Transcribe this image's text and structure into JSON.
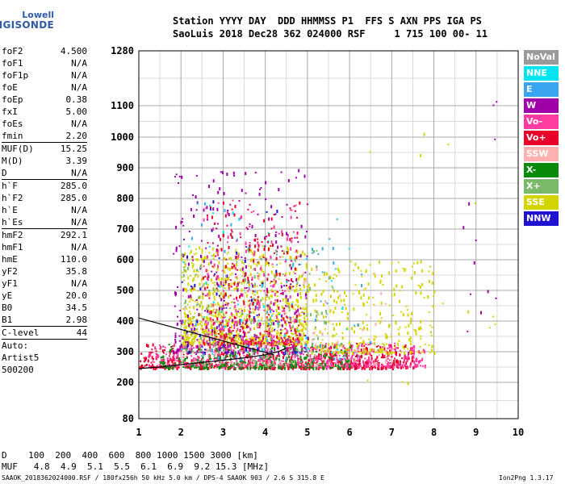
{
  "header": {
    "row1": "Station YYYY DAY  DDD HHMMSS P1  FFS S AXN PPS IGA PS",
    "row2": "SaoLuis 2018 Dec28 362 024000 RSF     1 715 100 00- 11"
  },
  "logo": {
    "line1": "Lowell",
    "line2": "DIGISONDE"
  },
  "params_group1": [
    {
      "name": "foF2",
      "value": "4.500"
    },
    {
      "name": "foF1",
      "value": "N/A"
    },
    {
      "name": "foF1p",
      "value": "N/A"
    },
    {
      "name": "foE",
      "value": "N/A"
    },
    {
      "name": "foEp",
      "value": "0.38"
    },
    {
      "name": "fxI",
      "value": "5.00"
    },
    {
      "name": "foEs",
      "value": "N/A"
    },
    {
      "name": "fmin",
      "value": "2.20"
    }
  ],
  "params_group2": [
    {
      "name": "MUF(D)",
      "value": "15.25"
    },
    {
      "name": "M(D)",
      "value": "3.39"
    },
    {
      "name": "D",
      "value": "N/A"
    }
  ],
  "params_group3": [
    {
      "name": "h`F",
      "value": "285.0"
    },
    {
      "name": "h`F2",
      "value": "285.0"
    },
    {
      "name": "h`E",
      "value": "N/A"
    },
    {
      "name": "h`Es",
      "value": "N/A"
    }
  ],
  "params_group4": [
    {
      "name": "hmF2",
      "value": "292.1"
    },
    {
      "name": "hmF1",
      "value": "N/A"
    },
    {
      "name": "hmE",
      "value": "110.0"
    },
    {
      "name": "yF2",
      "value": "35.8"
    },
    {
      "name": "yF1",
      "value": "N/A"
    },
    {
      "name": "yE",
      "value": "20.0"
    },
    {
      "name": "B0",
      "value": "34.5"
    },
    {
      "name": "B1",
      "value": "2.98"
    }
  ],
  "clevel": {
    "name": "C-level",
    "value": "44"
  },
  "auto": {
    "line1": "Auto:",
    "line2": "Artist5",
    "line3": "500200"
  },
  "legend": [
    {
      "label": "NoVal",
      "color": "#9a9a9a"
    },
    {
      "label": "NNE",
      "color": "#00e5f0"
    },
    {
      "label": "E",
      "color": "#3aa6f2"
    },
    {
      "label": "W",
      "color": "#a000a8"
    },
    {
      "label": "Vo-",
      "color": "#ff3aa0"
    },
    {
      "label": "Vo+",
      "color": "#e8002a"
    },
    {
      "label": "SSW",
      "color": "#ffb0b0"
    },
    {
      "label": "X-",
      "color": "#0a8a0a"
    },
    {
      "label": "X+",
      "color": "#7ab86a"
    },
    {
      "label": "SSE",
      "color": "#d4d400"
    },
    {
      "label": "NNW",
      "color": "#2010d0"
    }
  ],
  "footer": {
    "d_row": "D    100  200  400  600  800 1000 1500 3000 [km]",
    "muf_row": "MUF   4.8  4.9  5.1  5.5  6.1  6.9  9.2 15.3 [MHz]",
    "file_line": "SAAOK_2018362024000.RSF / 180fx256h 50 kHz 5.0 km / DPS-4 SAA0K 903 / 2.6 S 315.8 E",
    "version": "Ion2Png 1.3.17"
  },
  "chart_data": {
    "type": "scatter",
    "xlim": [
      1,
      10
    ],
    "ylim": [
      80,
      1280
    ],
    "y_scale": "reciprocal-like (virtual height ionogram)",
    "x_ticks": [
      1,
      2,
      3,
      4,
      5,
      6,
      7,
      8,
      9,
      10
    ],
    "y_ticks": [
      80,
      200,
      300,
      400,
      500,
      600,
      700,
      800,
      900,
      1000,
      1100,
      1280
    ],
    "grid": true,
    "legend_placement": "right",
    "trace_lines": [
      {
        "x": [
          1.0,
          1.5,
          2.0,
          2.5,
          3.0,
          3.5,
          4.0,
          4.3,
          4.5
        ],
        "y": [
          245,
          250,
          258,
          265,
          272,
          280,
          290,
          300,
          312
        ]
      },
      {
        "x": [
          1.0,
          1.4,
          1.8,
          2.2,
          2.6,
          3.0,
          3.4,
          3.8,
          4.2
        ],
        "y": [
          410,
          395,
          380,
          365,
          350,
          335,
          320,
          305,
          290
        ]
      }
    ],
    "clusters": [
      {
        "color": "#e8002a",
        "xr": [
          1.0,
          7.5
        ],
        "yr": [
          250,
          330
        ],
        "n": 700
      },
      {
        "color": "#ff3aa0",
        "xr": [
          1.2,
          7.8
        ],
        "yr": [
          255,
          330
        ],
        "n": 500
      },
      {
        "color": "#0a8a0a",
        "xr": [
          1.5,
          6.0
        ],
        "yr": [
          250,
          330
        ],
        "n": 250
      },
      {
        "color": "#d4d400",
        "xr": [
          2.0,
          5.0
        ],
        "yr": [
          330,
          650
        ],
        "n": 900
      },
      {
        "color": "#d4d400",
        "xr": [
          5.0,
          8.0
        ],
        "yr": [
          300,
          600
        ],
        "n": 300
      },
      {
        "color": "#a000a8",
        "xr": [
          1.8,
          5.0
        ],
        "yr": [
          300,
          900
        ],
        "n": 350
      },
      {
        "color": "#7ab86a",
        "xr": [
          2.0,
          5.5
        ],
        "yr": [
          260,
          650
        ],
        "n": 200
      },
      {
        "color": "#3aa6f2",
        "xr": [
          2.0,
          6.5
        ],
        "yr": [
          280,
          800
        ],
        "n": 80
      },
      {
        "color": "#00e5f0",
        "xr": [
          2.0,
          6.0
        ],
        "yr": [
          300,
          800
        ],
        "n": 60
      },
      {
        "color": "#2010d0",
        "xr": [
          2.0,
          5.0
        ],
        "yr": [
          300,
          800
        ],
        "n": 60
      },
      {
        "color": "#ffb0b0",
        "xr": [
          2.0,
          7.0
        ],
        "yr": [
          260,
          600
        ],
        "n": 80
      },
      {
        "color": "#e8002a",
        "xr": [
          2.5,
          4.8
        ],
        "yr": [
          330,
          800
        ],
        "n": 250
      },
      {
        "color": "#ff3aa0",
        "xr": [
          2.5,
          4.8
        ],
        "yr": [
          330,
          800
        ],
        "n": 200
      },
      {
        "color": "#a000a8",
        "xr": [
          8.5,
          9.5
        ],
        "yr": [
          250,
          1280
        ],
        "n": 12
      },
      {
        "color": "#d4d400",
        "xr": [
          6.0,
          9.5
        ],
        "yr": [
          200,
          1200
        ],
        "n": 20
      }
    ]
  }
}
